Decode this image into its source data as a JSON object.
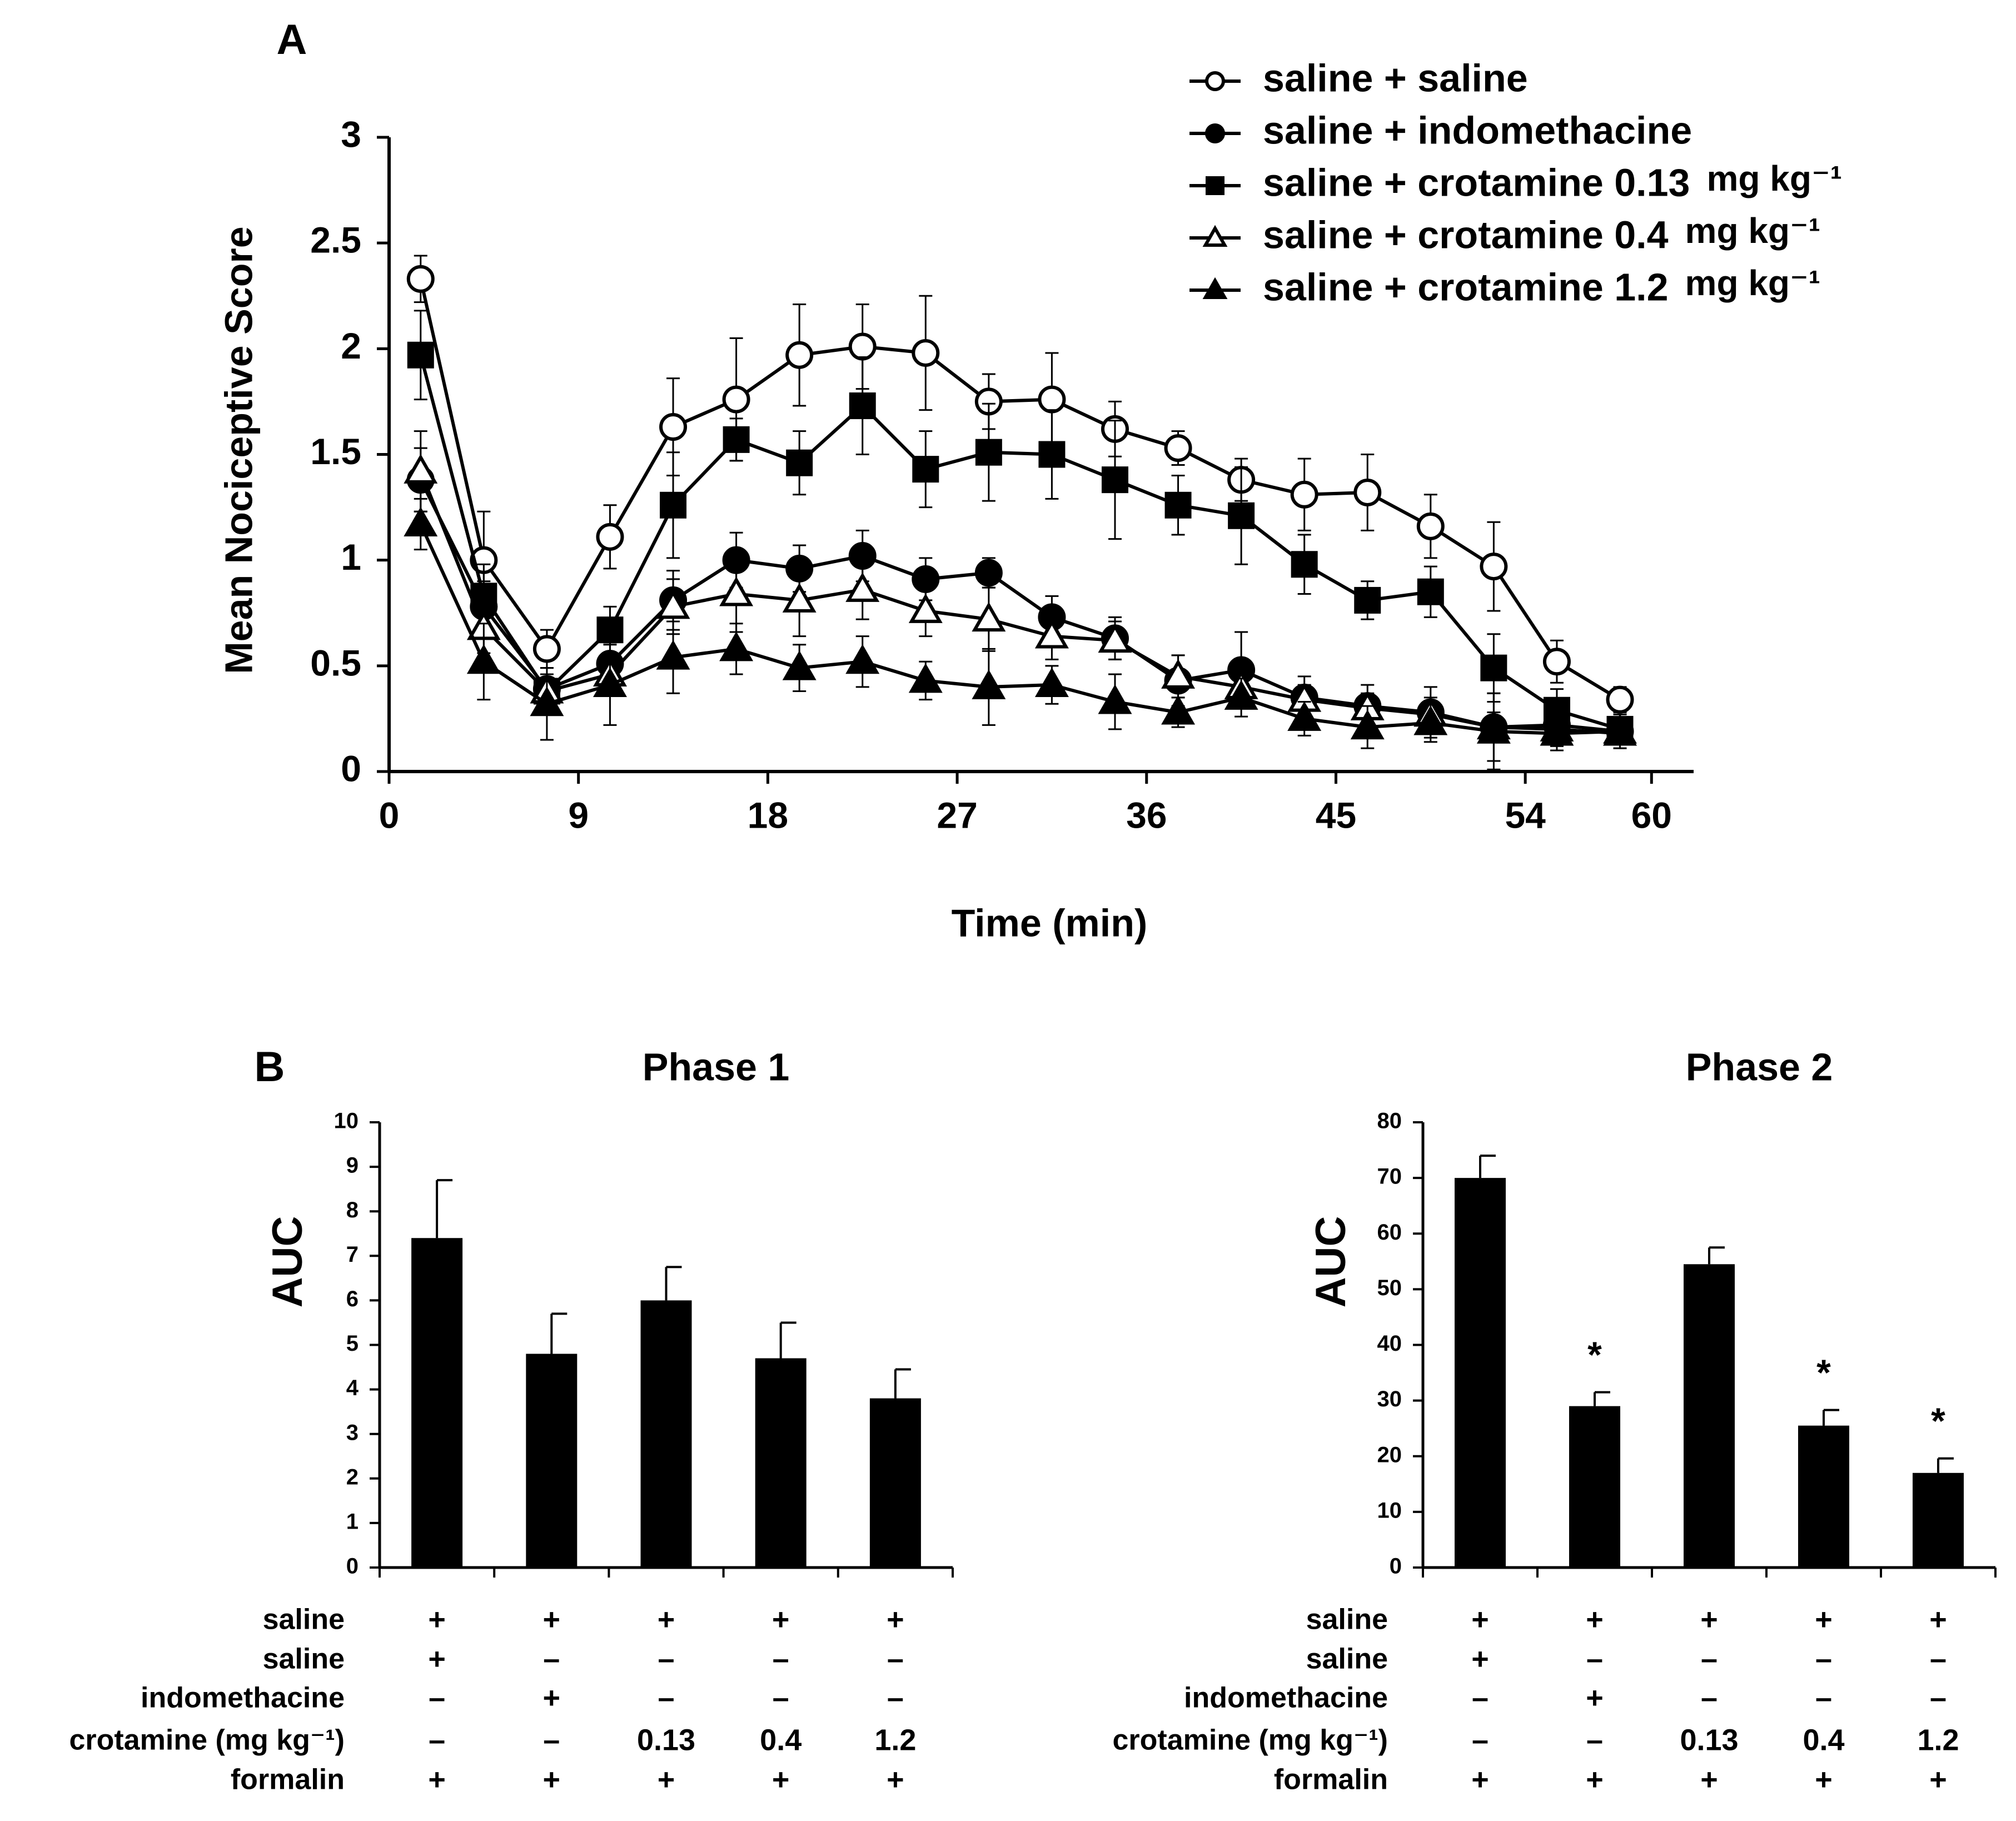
{
  "chart_data": [
    {
      "panel": "A",
      "type": "line",
      "xlabel": "Time (min)",
      "ylabel": "Mean Nociceptive Score",
      "xlim": [
        0,
        62
      ],
      "ylim": [
        0,
        3
      ],
      "xticks": [
        0,
        9,
        18,
        27,
        36,
        45,
        54,
        60
      ],
      "xtick_labels": [
        "0",
        "9",
        "18",
        "27",
        "36",
        "45",
        "54",
        "60"
      ],
      "yticks": [
        0,
        0.5,
        1,
        1.5,
        2,
        2.5,
        3
      ],
      "ytick_labels": [
        "0",
        "0.5",
        "1",
        "1.5",
        "2",
        "2.5",
        "3"
      ],
      "legend_position": "top-right",
      "x": [
        1.5,
        4.5,
        7.5,
        10.5,
        13.5,
        16.5,
        19.5,
        22.5,
        25.5,
        28.5,
        31.5,
        34.5,
        37.5,
        40.5,
        43.5,
        46.5,
        49.5,
        52.5,
        55.5,
        58.5
      ],
      "series": [
        {
          "name": "saline + saline",
          "legend_main": "saline + saline",
          "legend_unit": "",
          "marker": "open-circle",
          "values": [
            2.33,
            1.0,
            0.58,
            1.11,
            1.63,
            1.76,
            1.97,
            2.01,
            1.98,
            1.75,
            1.76,
            1.62,
            1.53,
            1.38,
            1.31,
            1.32,
            1.16,
            0.97,
            0.52,
            0.34
          ],
          "errors": [
            0.11,
            0.23,
            0.09,
            0.15,
            0.23,
            0.29,
            0.24,
            0.2,
            0.27,
            0.13,
            0.22,
            0.13,
            0.08,
            0.1,
            0.17,
            0.18,
            0.15,
            0.21,
            0.1,
            0.06
          ]
        },
        {
          "name": "saline + indomethacine",
          "legend_main": "saline + indomethacine",
          "legend_unit": "",
          "marker": "filled-circle",
          "values": [
            1.38,
            0.78,
            0.39,
            0.51,
            0.81,
            1.0,
            0.96,
            1.02,
            0.91,
            0.94,
            0.73,
            0.63,
            0.43,
            0.48,
            0.35,
            0.31,
            0.28,
            0.21,
            0.22,
            0.19
          ],
          "errors": [
            0.15,
            0.12,
            0.07,
            0.1,
            0.14,
            0.13,
            0.11,
            0.12,
            0.1,
            0.07,
            0.1,
            0.1,
            0.12,
            0.18,
            0.1,
            0.1,
            0.12,
            0.07,
            0.07,
            0.06
          ]
        },
        {
          "name": "saline + crotamine 0.13 mg kg⁻¹",
          "legend_main": "saline + crotamine 0.13",
          "legend_unit": "mg kg⁻¹",
          "marker": "filled-square",
          "values": [
            1.97,
            0.83,
            0.38,
            0.67,
            1.26,
            1.57,
            1.46,
            1.73,
            1.43,
            1.51,
            1.5,
            1.38,
            1.26,
            1.21,
            0.98,
            0.81,
            0.85,
            0.49,
            0.29,
            0.2
          ],
          "errors": [
            0.21,
            0.15,
            0.06,
            0.11,
            0.25,
            0.1,
            0.15,
            0.23,
            0.18,
            0.23,
            0.21,
            0.28,
            0.14,
            0.23,
            0.14,
            0.09,
            0.12,
            0.16,
            0.1,
            0.07
          ]
        },
        {
          "name": "saline + crotamine 0.4 mg kg⁻¹",
          "legend_main": "saline + crotamine 0.4",
          "legend_unit": "mg kg⁻¹",
          "marker": "open-triangle",
          "values": [
            1.42,
            0.68,
            0.38,
            0.46,
            0.78,
            0.84,
            0.81,
            0.86,
            0.76,
            0.72,
            0.64,
            0.62,
            0.45,
            0.4,
            0.34,
            0.3,
            0.27,
            0.21,
            0.2,
            0.18
          ],
          "errors": [
            0.19,
            0.12,
            0.06,
            0.09,
            0.13,
            0.18,
            0.17,
            0.14,
            0.12,
            0.15,
            0.11,
            0.09,
            0.1,
            0.08,
            0.07,
            0.07,
            0.08,
            0.16,
            0.08,
            0.07
          ]
        },
        {
          "name": "saline + crotamine 1.2 mg kg⁻¹",
          "legend_main": "saline + crotamine 1.2",
          "legend_unit": "mg kg⁻¹",
          "marker": "filled-triangle",
          "values": [
            1.17,
            0.52,
            0.32,
            0.41,
            0.54,
            0.58,
            0.49,
            0.52,
            0.43,
            0.4,
            0.41,
            0.33,
            0.28,
            0.35,
            0.25,
            0.21,
            0.23,
            0.19,
            0.18,
            0.19
          ],
          "errors": [
            0.12,
            0.18,
            0.17,
            0.19,
            0.17,
            0.12,
            0.11,
            0.12,
            0.09,
            0.18,
            0.09,
            0.13,
            0.07,
            0.09,
            0.08,
            0.1,
            0.09,
            0.18,
            0.08,
            0.08
          ]
        }
      ]
    },
    {
      "panel": "B",
      "type": "bar",
      "title": "Phase 1",
      "ylabel": "AUC",
      "ylim": [
        0,
        10
      ],
      "yticks": [
        0,
        1,
        2,
        3,
        4,
        5,
        6,
        7,
        8,
        9,
        10
      ],
      "ytick_labels": [
        "0",
        "1",
        "2",
        "3",
        "4",
        "5",
        "6",
        "7",
        "8",
        "9",
        "10"
      ],
      "values": [
        7.4,
        4.8,
        6.0,
        4.7,
        3.8
      ],
      "errors": [
        1.3,
        0.9,
        0.75,
        0.8,
        0.65
      ],
      "significance": [
        "",
        "",
        "",
        "",
        ""
      ]
    },
    {
      "panel": "B",
      "type": "bar",
      "title": "Phase 2",
      "ylabel": "AUC",
      "ylim": [
        0,
        80
      ],
      "yticks": [
        0,
        10,
        20,
        30,
        40,
        50,
        60,
        70,
        80
      ],
      "ytick_labels": [
        "0",
        "10",
        "20",
        "30",
        "40",
        "50",
        "60",
        "70",
        "80"
      ],
      "values": [
        70,
        29,
        54.5,
        25.5,
        17
      ],
      "errors": [
        4,
        2.5,
        3,
        2.8,
        2.6
      ],
      "significance": [
        "",
        "*",
        "",
        "*",
        "*"
      ]
    }
  ],
  "panel_labels": {
    "a": "A",
    "b": "B"
  },
  "treatment_table": {
    "rows": [
      {
        "label": "saline",
        "cells": [
          "+",
          "+",
          "+",
          "+",
          "+"
        ]
      },
      {
        "label": "saline",
        "cells": [
          "+",
          "–",
          "–",
          "–",
          "–"
        ]
      },
      {
        "label": "indomethacine",
        "cells": [
          "–",
          "+",
          "–",
          "–",
          "–"
        ]
      },
      {
        "label": "crotamine (mg kg⁻¹)",
        "cells": [
          "–",
          "–",
          "0.13",
          "0.4",
          "1.2"
        ]
      },
      {
        "label": "formalin",
        "cells": [
          "+",
          "+",
          "+",
          "+",
          "+"
        ]
      }
    ]
  }
}
